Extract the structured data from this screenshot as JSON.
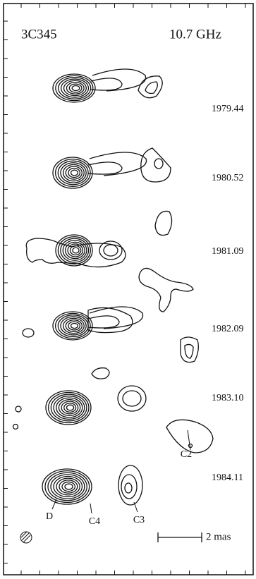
{
  "header": {
    "source": "3C345",
    "frequency": "10.7 GHz"
  },
  "epochs": [
    "1979.44",
    "1980.52",
    "1981.09",
    "1982.09",
    "1983.10",
    "1984.11"
  ],
  "components": [
    "D",
    "C4",
    "C3",
    "C2"
  ],
  "scale_bar": "2 mas"
}
